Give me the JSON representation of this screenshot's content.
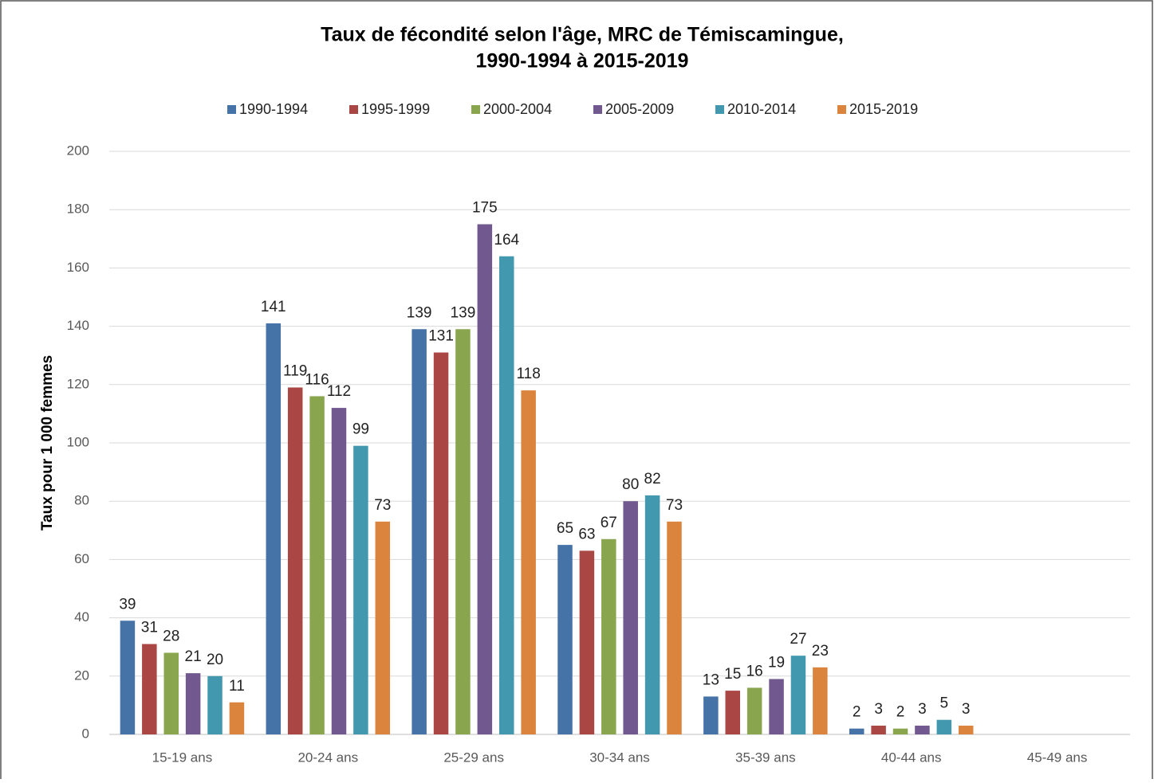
{
  "chart_data": {
    "type": "bar",
    "title": [
      "Taux de fécondité selon l'âge, MRC de Témiscamingue,",
      "1990-1994  à 2015-2019"
    ],
    "y_label": "Taux pour 1 000 femmes",
    "categories": [
      "15-19 ans",
      "20-24 ans",
      "25-29 ans",
      "30-34 ans",
      "35-39 ans",
      "40-44 ans",
      "45-49 ans"
    ],
    "series": [
      {
        "name": "1990-1994",
        "color": "#4572a7",
        "values": [
          39,
          141,
          139,
          65,
          13,
          2,
          null
        ]
      },
      {
        "name": "1995-1999",
        "color": "#aa4643",
        "values": [
          31,
          119,
          131,
          63,
          15,
          3,
          null
        ]
      },
      {
        "name": "2000-2004",
        "color": "#89a54e",
        "values": [
          28,
          116,
          139,
          67,
          16,
          2,
          null
        ]
      },
      {
        "name": "2005-2009",
        "color": "#71588f",
        "values": [
          21,
          112,
          175,
          80,
          19,
          3,
          null
        ]
      },
      {
        "name": "2010-2014",
        "color": "#4198af",
        "values": [
          20,
          99,
          164,
          82,
          27,
          5,
          null
        ]
      },
      {
        "name": "2015-2019",
        "color": "#db843d",
        "values": [
          11,
          73,
          118,
          73,
          23,
          3,
          null
        ]
      }
    ],
    "ylim": [
      0,
      200
    ],
    "yticks": [
      0,
      20,
      40,
      60,
      80,
      100,
      120,
      140,
      160,
      180,
      200
    ],
    "grid": true,
    "legend": "top"
  }
}
